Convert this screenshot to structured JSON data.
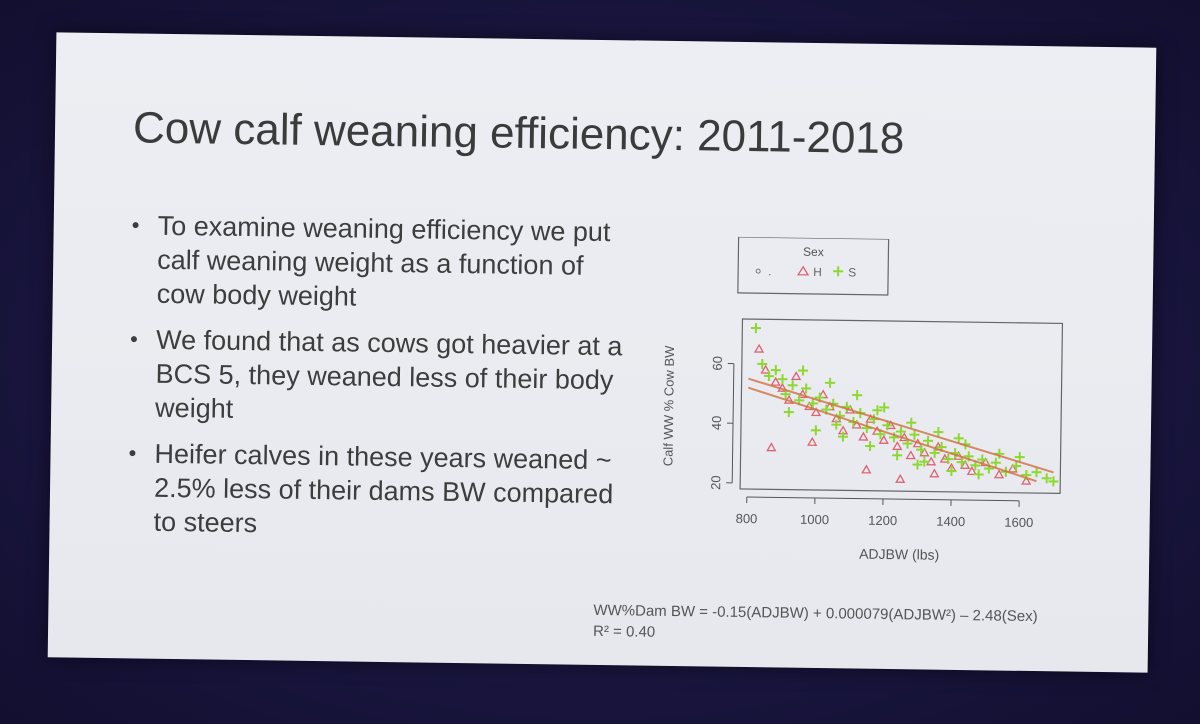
{
  "slide": {
    "title": "Cow calf weaning efficiency: 2011-2018",
    "bullets": [
      "To examine weaning efficiency we put calf weaning weight as a function of cow body weight",
      "We found that as cows got heavier at a BCS 5, they weaned less of their body weight",
      "Heifer calves in these years weaned ~ 2.5% less of their dams BW compared to steers"
    ],
    "equation": "WW%Dam BW = -0.15(ADJBW) + 0.000079(ADJBW²) – 2.48(Sex)",
    "r_squared": "R² = 0.40"
  },
  "colors": {
    "heifer": "#e06070",
    "steer": "#8cd830",
    "trend": "#d07040",
    "axis": "#555555"
  },
  "chart_data": {
    "type": "scatter",
    "xlabel": "ADJBW (lbs)",
    "ylabel": "Calf WW % Cow BW",
    "xlim": [
      780,
      1720
    ],
    "ylim": [
      18,
      75
    ],
    "x_ticks": [
      800,
      1000,
      1200,
      1400,
      1600
    ],
    "y_ticks": [
      20,
      40,
      60
    ],
    "legend": {
      "title": "Sex",
      "position": "top",
      "entries": [
        {
          "symbol": "o",
          "label": "."
        },
        {
          "symbol": "triangle",
          "label": "H"
        },
        {
          "symbol": "plus",
          "label": "S"
        }
      ]
    },
    "grid": false,
    "series": [
      {
        "name": "H",
        "marker": "triangle",
        "points": [
          [
            830,
            65
          ],
          [
            850,
            58
          ],
          [
            880,
            54
          ],
          [
            900,
            52
          ],
          [
            920,
            48
          ],
          [
            940,
            56
          ],
          [
            960,
            50
          ],
          [
            980,
            46
          ],
          [
            1000,
            44
          ],
          [
            1020,
            50
          ],
          [
            1040,
            46
          ],
          [
            1060,
            42
          ],
          [
            1080,
            38
          ],
          [
            1100,
            45
          ],
          [
            1120,
            40
          ],
          [
            1140,
            36
          ],
          [
            1160,
            42
          ],
          [
            1180,
            38
          ],
          [
            1200,
            35
          ],
          [
            1220,
            40
          ],
          [
            1240,
            33
          ],
          [
            1260,
            36
          ],
          [
            1280,
            30
          ],
          [
            1300,
            34
          ],
          [
            1320,
            31
          ],
          [
            1340,
            28
          ],
          [
            1360,
            33
          ],
          [
            1380,
            29
          ],
          [
            1400,
            26
          ],
          [
            1420,
            30
          ],
          [
            1440,
            27
          ],
          [
            1460,
            25
          ],
          [
            1500,
            28
          ],
          [
            1540,
            24
          ],
          [
            1580,
            26
          ],
          [
            1620,
            22
          ],
          [
            870,
            32
          ],
          [
            990,
            34
          ],
          [
            1150,
            25
          ],
          [
            1250,
            22
          ],
          [
            1350,
            24
          ]
        ]
      },
      {
        "name": "S",
        "marker": "plus",
        "points": [
          [
            820,
            72
          ],
          [
            840,
            60
          ],
          [
            860,
            56
          ],
          [
            880,
            58
          ],
          [
            900,
            55
          ],
          [
            910,
            50
          ],
          [
            930,
            53
          ],
          [
            950,
            48
          ],
          [
            970,
            52
          ],
          [
            990,
            47
          ],
          [
            1010,
            49
          ],
          [
            1030,
            45
          ],
          [
            1050,
            47
          ],
          [
            1070,
            43
          ],
          [
            1090,
            46
          ],
          [
            1110,
            41
          ],
          [
            1130,
            44
          ],
          [
            1150,
            39
          ],
          [
            1170,
            42
          ],
          [
            1190,
            37
          ],
          [
            1210,
            40
          ],
          [
            1230,
            36
          ],
          [
            1250,
            38
          ],
          [
            1270,
            34
          ],
          [
            1290,
            37
          ],
          [
            1310,
            32
          ],
          [
            1330,
            35
          ],
          [
            1350,
            31
          ],
          [
            1370,
            33
          ],
          [
            1390,
            29
          ],
          [
            1410,
            31
          ],
          [
            1430,
            28
          ],
          [
            1450,
            30
          ],
          [
            1470,
            27
          ],
          [
            1490,
            29
          ],
          [
            1510,
            26
          ],
          [
            1530,
            28
          ],
          [
            1560,
            25
          ],
          [
            1590,
            27
          ],
          [
            1620,
            24
          ],
          [
            1650,
            25
          ],
          [
            1680,
            23
          ],
          [
            1700,
            22
          ],
          [
            960,
            58
          ],
          [
            1040,
            54
          ],
          [
            1120,
            50
          ],
          [
            1200,
            46
          ],
          [
            1280,
            41
          ],
          [
            1360,
            38
          ],
          [
            1440,
            34
          ],
          [
            1000,
            38
          ],
          [
            1080,
            36
          ],
          [
            1160,
            33
          ],
          [
            1240,
            30
          ],
          [
            1320,
            28
          ],
          [
            1400,
            25
          ],
          [
            1480,
            24
          ],
          [
            920,
            44
          ],
          [
            1060,
            40
          ],
          [
            1180,
            45
          ],
          [
            1300,
            27
          ],
          [
            1420,
            36
          ],
          [
            1540,
            31
          ],
          [
            1600,
            30
          ]
        ]
      }
    ],
    "trend_lines": [
      {
        "name": "S",
        "x": [
          800,
          1700
        ],
        "y": [
          55,
          25
        ]
      },
      {
        "name": "H",
        "x": [
          800,
          1650
        ],
        "y": [
          52,
          22
        ]
      }
    ]
  }
}
